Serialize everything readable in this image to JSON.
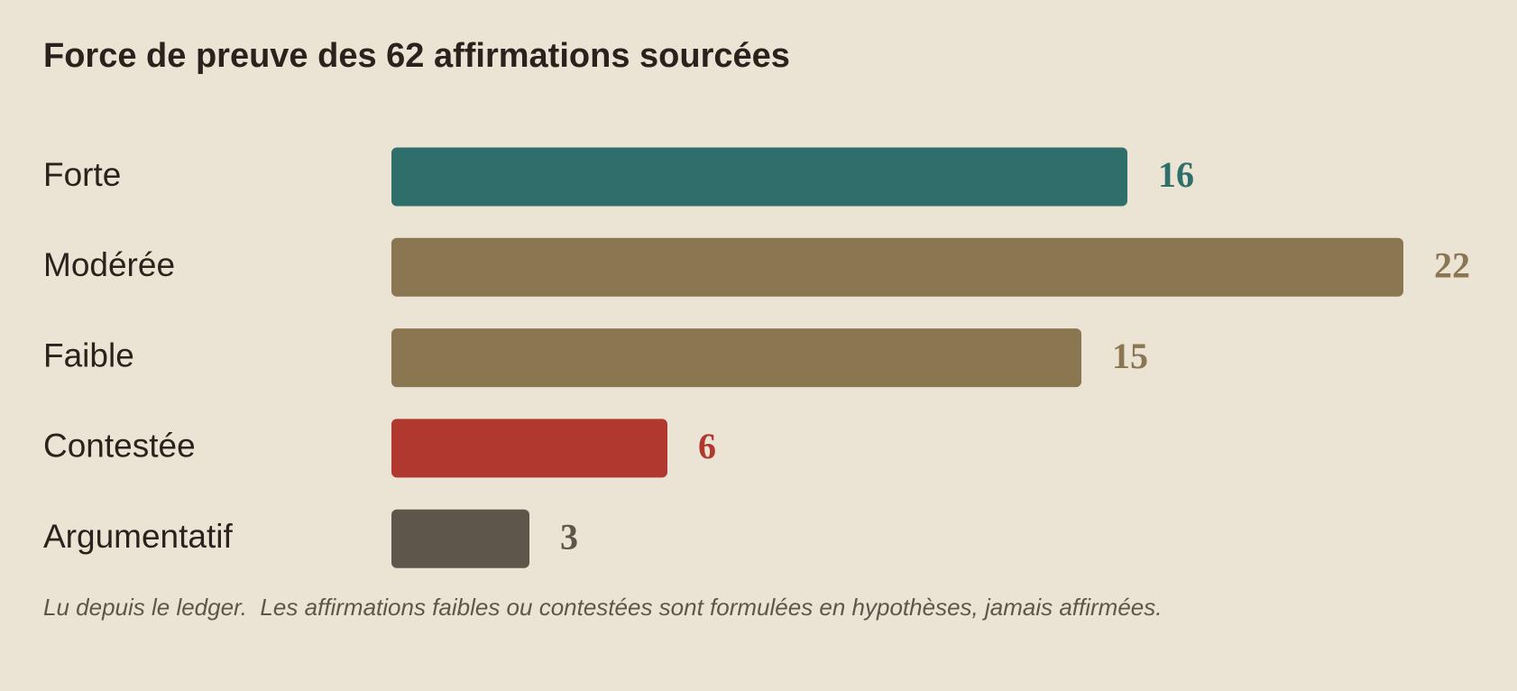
{
  "chart_data": {
    "type": "bar",
    "orientation": "horizontal",
    "title": "Force de preuve des 62 affirmations sourcées",
    "categories": [
      "Forte",
      "Modérée",
      "Faible",
      "Contestée",
      "Argumentatif"
    ],
    "values": [
      16,
      22,
      15,
      6,
      3
    ],
    "colors": [
      "#2e6f6b",
      "#8a7752",
      "#8a7752",
      "#b0382e",
      "#5e564a"
    ],
    "note": "Lu depuis le ledger.  Les affirmations faibles ou contestées sont formulées en hypothèses, jamais affirmées."
  }
}
